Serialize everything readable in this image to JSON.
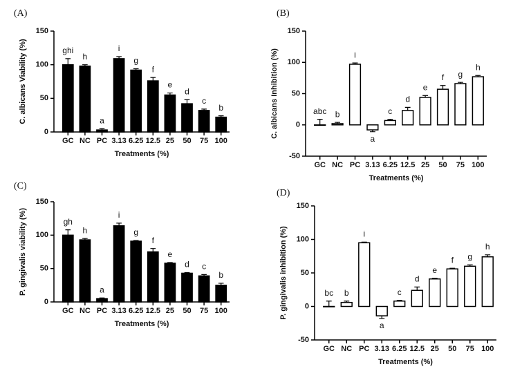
{
  "chart_data": [
    {
      "type": "bar",
      "panel": "(A)",
      "ylabel": "C. albicans Viability (%)",
      "xlabel": "Treatments (%)",
      "categories": [
        "GC",
        "NC",
        "PC",
        "3.13",
        "6.25",
        "12.5",
        "25",
        "50",
        "75",
        "100"
      ],
      "values": [
        100,
        98,
        3,
        109,
        92,
        76,
        55,
        42,
        32,
        22
      ],
      "errors": [
        9,
        2,
        2,
        3,
        2,
        5,
        3,
        6,
        2,
        2
      ],
      "letters": [
        "ghi",
        "h",
        "a",
        "i",
        "g",
        "f",
        "e",
        "d",
        "c",
        "b"
      ],
      "color": "#000000",
      "ylim": [
        0,
        150
      ],
      "yticks": [
        0,
        50,
        100,
        150
      ]
    },
    {
      "type": "bar",
      "panel": "(B)",
      "ylabel": "C. albicans Inhibition (%)",
      "xlabel": "Treatments (%)",
      "categories": [
        "GC",
        "NC",
        "PC",
        "3.13",
        "6.25",
        "12.5",
        "25",
        "50",
        "75",
        "100"
      ],
      "values": [
        0,
        2,
        97,
        -8,
        7,
        23,
        44,
        57,
        66,
        77
      ],
      "errors": [
        9,
        2,
        2,
        3,
        2,
        5,
        3,
        6,
        2,
        2
      ],
      "letters": [
        "abc",
        "b",
        "i",
        "a",
        "c",
        "d",
        "e",
        "f",
        "g",
        "h"
      ],
      "color": "#ffffff",
      "ylim": [
        -50,
        150
      ],
      "yticks": [
        -50,
        0,
        50,
        100,
        150
      ]
    },
    {
      "type": "bar",
      "panel": "(C)",
      "ylabel": "P. gingivalis viability (%)",
      "xlabel": "Treatments (%)",
      "categories": [
        "GC",
        "NC",
        "PC",
        "3.13",
        "6.25",
        "12.5",
        "25",
        "50",
        "75",
        "100"
      ],
      "values": [
        100,
        93,
        5,
        114,
        91,
        75,
        58,
        43,
        39,
        25
      ],
      "errors": [
        8,
        2,
        1,
        4,
        1,
        5,
        1,
        1,
        2,
        3
      ],
      "letters": [
        "gh",
        "h",
        "a",
        "i",
        "g",
        "f",
        "e",
        "d",
        "c",
        "b"
      ],
      "color": "#000000",
      "ylim": [
        0,
        150
      ],
      "yticks": [
        0,
        50,
        100,
        150
      ]
    },
    {
      "type": "bar",
      "panel": "(D)",
      "ylabel": "P. gingivalis inhibition (%)",
      "xlabel": "Treatments (%)",
      "categories": [
        "GC",
        "NC",
        "PC",
        "3.13",
        "6.25",
        "12.5",
        "25",
        "50",
        "75",
        "100"
      ],
      "values": [
        0,
        6,
        95,
        -14,
        8,
        24,
        41,
        56,
        60,
        74
      ],
      "errors": [
        8,
        2,
        1,
        4,
        1,
        5,
        1,
        1,
        2,
        3
      ],
      "letters": [
        "bc",
        "b",
        "i",
        "a",
        "c",
        "d",
        "e",
        "f",
        "g",
        "h"
      ],
      "color": "#ffffff",
      "ylim": [
        -50,
        150
      ],
      "yticks": [
        -50,
        0,
        50,
        100,
        150
      ]
    }
  ]
}
